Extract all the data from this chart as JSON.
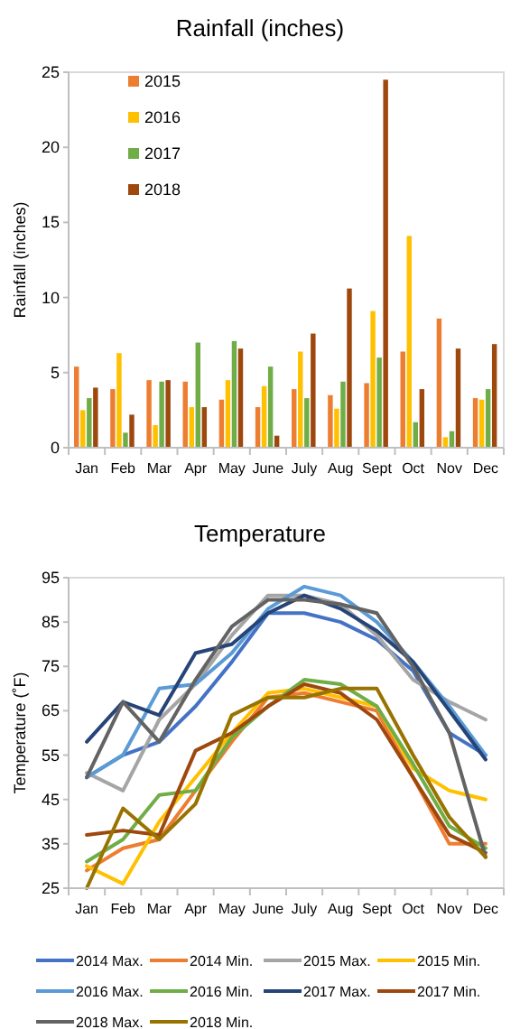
{
  "chart_data": [
    {
      "type": "bar",
      "title": "Rainfall (inches)",
      "ylabel": "Rainfall (inches)",
      "categories": [
        "Jan",
        "Feb",
        "Mar",
        "Apr",
        "May",
        "June",
        "July",
        "Aug",
        "Sept",
        "Oct",
        "Nov",
        "Dec"
      ],
      "series": [
        {
          "name": "2015",
          "color": "#ed7d31",
          "values": [
            5.4,
            3.9,
            4.5,
            4.4,
            3.2,
            2.7,
            3.9,
            3.5,
            4.3,
            6.4,
            8.6,
            3.3
          ]
        },
        {
          "name": "2016",
          "color": "#ffc000",
          "values": [
            2.5,
            6.3,
            1.5,
            2.7,
            4.5,
            4.1,
            6.4,
            2.6,
            9.1,
            14.1,
            0.7,
            3.2
          ]
        },
        {
          "name": "2017",
          "color": "#70ad47",
          "values": [
            3.3,
            1.0,
            4.4,
            7.0,
            7.1,
            5.4,
            3.3,
            4.4,
            6.0,
            1.7,
            1.1,
            3.9
          ]
        },
        {
          "name": "2018",
          "color": "#9e480e",
          "values": [
            4.0,
            2.2,
            4.5,
            2.7,
            6.6,
            0.8,
            7.6,
            10.6,
            24.5,
            3.9,
            6.6,
            6.9
          ]
        }
      ],
      "ylim": [
        0,
        25
      ],
      "yticks": [
        0,
        5,
        10,
        15,
        20,
        25
      ],
      "grid": false,
      "legend": "top left"
    },
    {
      "type": "line",
      "title": "Temperature",
      "ylabel": "Temperature (˚F)",
      "categories": [
        "Jan",
        "Feb",
        "Mar",
        "Apr",
        "May",
        "June",
        "July",
        "Aug",
        "Sept",
        "Oct",
        "Nov",
        "Dec"
      ],
      "series": [
        {
          "name": "2014 Max.",
          "color": "#4472c4",
          "values": [
            50,
            55,
            58,
            66,
            76,
            87,
            87,
            85,
            81,
            74,
            60,
            55
          ]
        },
        {
          "name": "2014 Min.",
          "color": "#ed7d31",
          "values": [
            29,
            34,
            36,
            47,
            58,
            68,
            69,
            67,
            65,
            50,
            35,
            35
          ]
        },
        {
          "name": "2015 Max.",
          "color": "#a5a5a5",
          "values": [
            51,
            47,
            63,
            71,
            82,
            91,
            91,
            89,
            82,
            72,
            67,
            63
          ]
        },
        {
          "name": "2015 Min.",
          "color": "#ffc000",
          "values": [
            30,
            26,
            40,
            50,
            60,
            69,
            70,
            68,
            66,
            52,
            47,
            45
          ]
        },
        {
          "name": "2016 Max.",
          "color": "#5b9bd5",
          "values": [
            50,
            55,
            70,
            71,
            78,
            88,
            93,
            91,
            85,
            76,
            66,
            55
          ]
        },
        {
          "name": "2016 Min.",
          "color": "#70ad47",
          "values": [
            31,
            36,
            46,
            47,
            59,
            66,
            72,
            71,
            66,
            53,
            39,
            34
          ]
        },
        {
          "name": "2017 Max.",
          "color": "#264478",
          "values": [
            58,
            67,
            64,
            78,
            80,
            87,
            91,
            88,
            83,
            76,
            65,
            54
          ]
        },
        {
          "name": "2017 Min.",
          "color": "#9e480e",
          "values": [
            37,
            38,
            37,
            56,
            60,
            66,
            71,
            69,
            63,
            50,
            37,
            33
          ]
        },
        {
          "name": "2018 Max.",
          "color": "#636363",
          "values": [
            50,
            67,
            58,
            72,
            84,
            90,
            90,
            89,
            87,
            75,
            60,
            32
          ]
        },
        {
          "name": "2018 Min.",
          "color": "#997300",
          "values": [
            25,
            43,
            36,
            44,
            64,
            68,
            68,
            70,
            70,
            55,
            41,
            32
          ]
        }
      ],
      "ylim": [
        25,
        95
      ],
      "yticks": [
        25,
        35,
        45,
        55,
        65,
        75,
        85,
        95
      ],
      "grid": false,
      "legend": "bottom",
      "marker": "none",
      "line_style": "solid"
    }
  ]
}
